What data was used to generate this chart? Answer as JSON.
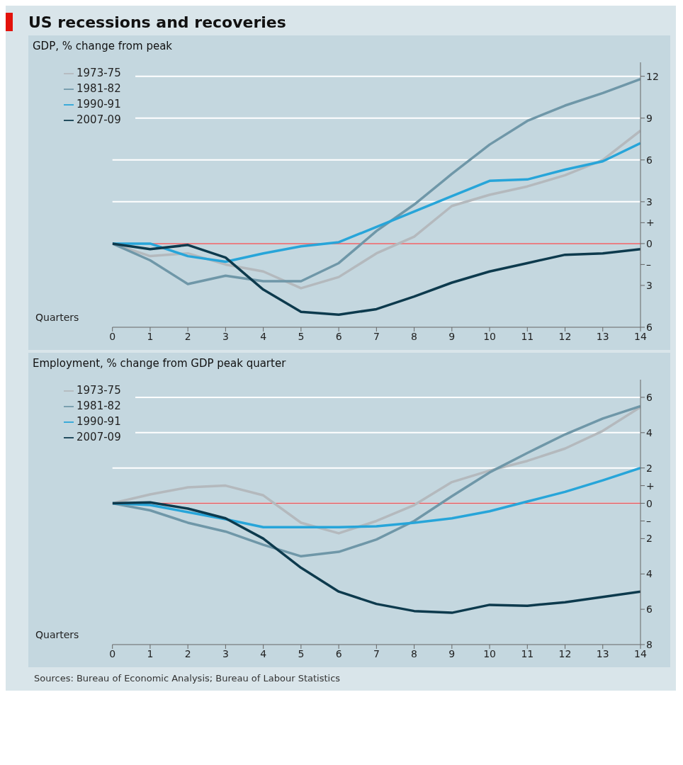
{
  "chart_data": [
    {
      "type": "line",
      "title": "US recessions and recoveries",
      "ylabel": "GDP, % change from peak",
      "xlabel": "Quarters",
      "x": [
        0,
        1,
        2,
        3,
        4,
        5,
        6,
        7,
        8,
        9,
        10,
        11,
        12,
        13,
        14
      ],
      "series": [
        {
          "name": "1973-75",
          "color": "#b4b9bd",
          "values": [
            0,
            -0.9,
            -0.7,
            -1.5,
            -2.0,
            -3.2,
            -2.4,
            -0.7,
            0.5,
            2.7,
            3.5,
            4.1,
            4.9,
            6.0,
            8.1
          ]
        },
        {
          "name": "1981-82",
          "color": "#6f97a8",
          "values": [
            0,
            -1.2,
            -2.9,
            -2.3,
            -2.7,
            -2.7,
            -1.4,
            0.9,
            2.8,
            5.0,
            7.1,
            8.8,
            9.9,
            10.8,
            11.8
          ]
        },
        {
          "name": "1990-91",
          "color": "#27a5d9",
          "values": [
            0,
            0,
            -0.9,
            -1.3,
            -0.7,
            -0.2,
            0.1,
            1.2,
            2.3,
            3.4,
            4.5,
            4.6,
            5.3,
            5.9,
            7.2
          ]
        },
        {
          "name": "2007-09",
          "color": "#0d3a4d",
          "values": [
            0,
            -0.4,
            -0.1,
            -1.0,
            -3.3,
            -4.9,
            -5.1,
            -4.7,
            -3.8,
            -2.8,
            -2.0,
            -1.4,
            -0.8,
            -0.7,
            -0.4
          ]
        }
      ],
      "xlim": [
        0,
        14
      ],
      "xticks": [
        0,
        1,
        2,
        3,
        4,
        5,
        6,
        7,
        8,
        9,
        10,
        11,
        12,
        13,
        14
      ],
      "ylim": [
        -6,
        13
      ],
      "yticks": [
        {
          "value": -6,
          "label": "6"
        },
        {
          "value": -3,
          "label": "3"
        },
        {
          "value": -1.5,
          "label": "–"
        },
        0,
        {
          "value": 1.5,
          "label": "+"
        },
        3,
        6,
        9,
        12
      ],
      "ref_lines": [
        {
          "axis": "y",
          "value": 0,
          "color": "#e0565b"
        }
      ],
      "grid": "y",
      "legend": "top left"
    },
    {
      "type": "line",
      "ylabel": "Employment, % change from GDP peak quarter",
      "xlabel": "Quarters",
      "x": [
        0,
        1,
        2,
        3,
        4,
        5,
        6,
        7,
        8,
        9,
        10,
        11,
        12,
        13,
        14
      ],
      "series": [
        {
          "name": "1973-75",
          "color": "#b4b9bd",
          "values": [
            0,
            0.5,
            0.9,
            1.0,
            0.45,
            -1.1,
            -1.7,
            -1.0,
            -0.1,
            1.2,
            1.85,
            2.4,
            3.1,
            4.1,
            5.45
          ]
        },
        {
          "name": "1981-82",
          "color": "#6f97a8",
          "values": [
            0,
            -0.4,
            -1.1,
            -1.6,
            -2.35,
            -3.0,
            -2.75,
            -2.05,
            -1.0,
            0.4,
            1.75,
            2.85,
            3.9,
            4.8,
            5.5
          ]
        },
        {
          "name": "1990-91",
          "color": "#27a5d9",
          "values": [
            0,
            -0.1,
            -0.5,
            -0.9,
            -1.35,
            -1.35,
            -1.35,
            -1.3,
            -1.1,
            -0.85,
            -0.45,
            0.1,
            0.65,
            1.3,
            2.0
          ]
        },
        {
          "name": "2007-09",
          "color": "#0d3a4d",
          "values": [
            0,
            0.05,
            -0.3,
            -0.85,
            -2.0,
            -3.65,
            -5.0,
            -5.7,
            -6.1,
            -6.2,
            -5.75,
            -5.8,
            -5.6,
            -5.3,
            -5.0
          ]
        }
      ],
      "xlim": [
        0,
        14
      ],
      "xticks": [
        0,
        1,
        2,
        3,
        4,
        5,
        6,
        7,
        8,
        9,
        10,
        11,
        12,
        13,
        14
      ],
      "ylim": [
        -8,
        7
      ],
      "yticks": [
        {
          "value": -8,
          "label": "8"
        },
        {
          "value": -6,
          "label": "6"
        },
        {
          "value": -4,
          "label": "4"
        },
        {
          "value": -2,
          "label": "2"
        },
        {
          "value": -1,
          "label": "–"
        },
        0,
        {
          "value": 1,
          "label": "+"
        },
        2,
        4,
        6
      ],
      "ref_lines": [
        {
          "axis": "y",
          "value": 0,
          "color": "#e0565b"
        }
      ],
      "grid": "y",
      "legend": "top left",
      "annotations": [
        "Sources: Bureau of Economic Analysis; Bureau of Labour Statistics"
      ]
    }
  ]
}
